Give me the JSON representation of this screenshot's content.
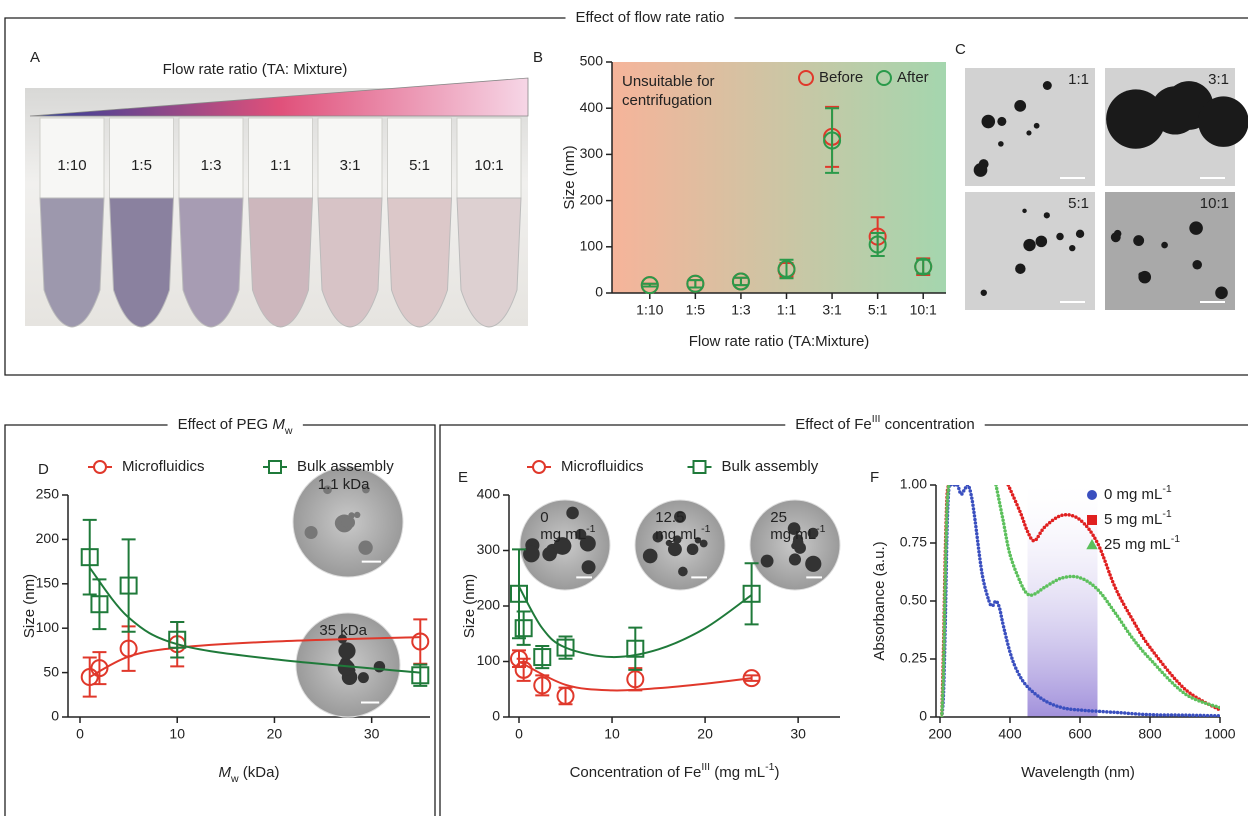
{
  "sections": [
    {
      "title": [
        {
          "text": "Effect of flow rate ratio"
        }
      ]
    },
    {
      "title": [
        {
          "text": "Effect of PEG "
        },
        {
          "text": "M",
          "style": "italic"
        },
        {
          "text": "w",
          "style": "sub"
        }
      ]
    },
    {
      "title": [
        {
          "text": "Effect of Fe"
        },
        {
          "text": "III",
          "style": "sup"
        },
        {
          "text": " concentration"
        }
      ]
    }
  ],
  "panel_a": {
    "panel": "A",
    "caption": "Flow rate ratio (TA: Mixture)",
    "tubes": [
      "1:10",
      "1:5",
      "1:3",
      "1:1",
      "3:1",
      "5:1",
      "10:1"
    ]
  },
  "panel_c": {
    "panel": "C",
    "images": [
      "1:1",
      "3:1",
      "5:1",
      "10:1"
    ]
  },
  "chart_data": [
    {
      "type": "errorbar",
      "panel": "B",
      "xlabel": [
        {
          "text": "Flow rate ratio (TA:Mixture)"
        }
      ],
      "ylabel": [
        {
          "text": "Size (nm)"
        }
      ],
      "categories": [
        "1:10",
        "1:5",
        "1:3",
        "1:1",
        "3:1",
        "5:1",
        "10:1"
      ],
      "ylim": [
        0,
        500
      ],
      "yticks": [
        0,
        100,
        200,
        300,
        400,
        500
      ],
      "background": [
        "#f6b49a",
        "#a4d6ae"
      ],
      "annotation": [
        "Unsuitable for",
        "centrifugation"
      ],
      "legend": "top-right",
      "series": [
        {
          "name": [
            {
              "text": "Before"
            }
          ],
          "color": "#e0382b",
          "marker": "circle",
          "values": [
            17,
            20,
            25,
            50,
            338,
            122,
            57
          ],
          "errors": [
            3,
            8,
            8,
            15,
            65,
            42,
            18
          ]
        },
        {
          "name": [
            {
              "text": "After"
            }
          ],
          "color": "#2a9a4a",
          "marker": "circle",
          "values": [
            17,
            20,
            25,
            52,
            330,
            105,
            57
          ],
          "errors": [
            3,
            8,
            8,
            20,
            70,
            25,
            15
          ]
        }
      ]
    },
    {
      "type": "errorbar",
      "panel": "D",
      "xlabel": [
        {
          "text": "M",
          "style": "italic"
        },
        {
          "text": "w",
          "style": "sub"
        },
        {
          "text": " (kDa)"
        }
      ],
      "ylabel": [
        {
          "text": "Size (nm)"
        }
      ],
      "xlim": [
        0,
        36
      ],
      "xticks": [
        0,
        10,
        20,
        30
      ],
      "ylim": [
        0,
        250
      ],
      "yticks": [
        0,
        50,
        100,
        150,
        200,
        250
      ],
      "legend": "top",
      "series": [
        {
          "name": [
            {
              "text": "Microfluidics"
            }
          ],
          "color": "#e0382b",
          "marker": "circle",
          "x": [
            1,
            2,
            5,
            10,
            35
          ],
          "values": [
            45,
            55,
            77,
            82,
            85
          ],
          "errors": [
            22,
            18,
            25,
            25,
            25
          ]
        },
        {
          "name": [
            {
              "text": "Bulk assembly"
            }
          ],
          "color": "#1f7a3a",
          "marker": "square",
          "x": [
            1,
            2,
            5,
            10,
            35
          ],
          "values": [
            180,
            127,
            148,
            87,
            47
          ],
          "errors": [
            42,
            28,
            52,
            20,
            12
          ]
        }
      ],
      "fits": [
        {
          "color": "#e0382b",
          "x": [
            1,
            5,
            10,
            20,
            35
          ],
          "values": [
            45,
            68,
            78,
            85,
            90
          ]
        },
        {
          "color": "#1f7a3a",
          "x": [
            1,
            5,
            10,
            20,
            35
          ],
          "values": [
            168,
            112,
            82,
            65,
            50
          ]
        }
      ],
      "insets": [
        {
          "label": [
            [
              {
                "text": "1.1 kDa"
              }
            ]
          ]
        },
        {
          "label": [
            [
              {
                "text": "35 kDa"
              }
            ]
          ]
        }
      ]
    },
    {
      "type": "errorbar",
      "panel": "E",
      "xlabel": [
        {
          "text": "Concentration of Fe"
        },
        {
          "text": "III",
          "style": "sup"
        },
        {
          "text": " (mg mL"
        },
        {
          "text": "-1",
          "style": "sup"
        },
        {
          "text": ")"
        }
      ],
      "ylabel": [
        {
          "text": "Size (nm)"
        }
      ],
      "xlim": [
        0,
        34.5
      ],
      "xticks": [
        0,
        10,
        20,
        30
      ],
      "ylim": [
        0,
        400
      ],
      "yticks": [
        0,
        100,
        200,
        300,
        400
      ],
      "legend": "top",
      "series": [
        {
          "name": [
            {
              "text": "Microfluidics"
            }
          ],
          "color": "#e0382b",
          "marker": "circle",
          "x": [
            0,
            0.5,
            2.5,
            5,
            12.5,
            25
          ],
          "values": [
            105,
            85,
            57,
            38,
            68,
            70
          ],
          "errors": [
            15,
            20,
            18,
            15,
            20,
            5
          ]
        },
        {
          "name": [
            {
              "text": "Bulk assembly"
            }
          ],
          "color": "#1f7a3a",
          "marker": "square",
          "x": [
            0,
            0.5,
            2.5,
            5,
            12.5,
            25
          ],
          "values": [
            222,
            160,
            108,
            125,
            123,
            222
          ],
          "errors": [
            80,
            30,
            20,
            20,
            38,
            55
          ]
        }
      ],
      "fits": [
        {
          "color": "#e0382b",
          "x": [
            0,
            5,
            10,
            15,
            20,
            25
          ],
          "values": [
            100,
            58,
            48,
            52,
            60,
            70
          ]
        },
        {
          "color": "#1f7a3a",
          "x": [
            0,
            2.5,
            5,
            10,
            15,
            20,
            25
          ],
          "values": [
            235,
            160,
            125,
            108,
            122,
            160,
            220
          ]
        }
      ],
      "insets": [
        {
          "label": [
            [
              {
                "text": "0"
              }
            ],
            [
              {
                "text": "mg mL"
              },
              {
                "text": "-1",
                "style": "sup"
              }
            ]
          ]
        },
        {
          "label": [
            [
              {
                "text": "12.5"
              }
            ],
            [
              {
                "text": "mg mL"
              },
              {
                "text": "-1",
                "style": "sup"
              }
            ]
          ]
        },
        {
          "label": [
            [
              {
                "text": "25"
              }
            ],
            [
              {
                "text": "mg mL"
              },
              {
                "text": "-1",
                "style": "sup"
              }
            ]
          ]
        }
      ]
    },
    {
      "type": "line",
      "panel": "F",
      "xlabel": [
        {
          "text": "Wavelength (nm)"
        }
      ],
      "ylabel": [
        {
          "text": "Absorbance (a.u.)"
        }
      ],
      "xlim": [
        200,
        1000
      ],
      "xticks": [
        200,
        400,
        600,
        800,
        1000
      ],
      "ylim": [
        0,
        1
      ],
      "yticks": [
        0,
        0.25,
        {
          "value": 0.5,
          "label": "0.50"
        },
        0.75,
        {
          "value": 1,
          "label": "1.00"
        }
      ],
      "band": [
        450,
        650
      ],
      "band_color": "#8f7ad6",
      "legend": "top-right",
      "series": [
        {
          "name": [
            {
              "text": "0 mg mL"
            },
            {
              "text": "-1",
              "style": "sup"
            }
          ],
          "color": "#3a4fbf",
          "marker": "circle",
          "x": [
            205,
            210,
            215,
            220,
            225,
            230,
            240,
            250,
            260,
            270,
            280,
            290,
            300,
            320,
            340,
            350,
            360,
            370,
            380,
            400,
            420,
            450,
            500,
            550,
            600,
            700,
            800,
            900,
            1000
          ],
          "values": [
            0,
            0.1,
            0.4,
            0.8,
            0.98,
            1,
            1,
            1,
            0.96,
            0.98,
            1,
            0.95,
            0.85,
            0.62,
            0.5,
            0.48,
            0.5,
            0.47,
            0.4,
            0.28,
            0.2,
            0.13,
            0.07,
            0.04,
            0.03,
            0.02,
            0.01,
            0.008,
            0.005
          ]
        },
        {
          "name": [
            {
              "text": "5 mg mL"
            },
            {
              "text": "-1",
              "style": "sup"
            }
          ],
          "color": "#e02020",
          "marker": "square",
          "x": [
            205,
            210,
            215,
            220,
            225,
            300,
            395,
            430,
            450,
            470,
            500,
            550,
            600,
            650,
            700,
            750,
            800,
            900,
            1000
          ],
          "values": [
            0,
            0.3,
            0.7,
            0.95,
            1,
            null,
            1,
            0.88,
            0.8,
            0.76,
            0.82,
            0.87,
            0.85,
            0.75,
            0.56,
            0.42,
            0.3,
            0.12,
            0.03
          ]
        },
        {
          "name": [
            {
              "text": "25 mg mL"
            },
            {
              "text": "-1",
              "style": "sup"
            }
          ],
          "color": "#5cc05c",
          "marker": "triangle",
          "x": [
            205,
            210,
            215,
            220,
            225,
            300,
            360,
            380,
            400,
            430,
            450,
            470,
            500,
            550,
            600,
            650,
            700,
            750,
            800,
            900,
            1000
          ],
          "values": [
            0,
            0.2,
            0.6,
            0.9,
            1,
            null,
            1,
            0.85,
            0.7,
            0.58,
            0.53,
            0.53,
            0.56,
            0.6,
            0.6,
            0.55,
            0.45,
            0.34,
            0.25,
            0.1,
            0.04
          ]
        }
      ]
    }
  ]
}
